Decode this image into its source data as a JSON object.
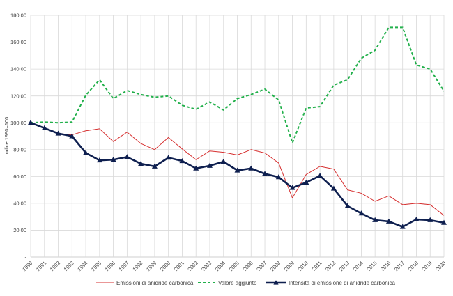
{
  "chart_data": {
    "type": "line",
    "title": "",
    "xlabel": "",
    "ylabel": "Indice 1990=100",
    "ylim": [
      0,
      180
    ],
    "y_ticks": [
      "-",
      "20,00",
      "40,00",
      "60,00",
      "80,00",
      "100,00",
      "120,00",
      "140,00",
      "160,00",
      "180,00"
    ],
    "grid": "vertical and horizontal",
    "legend_position": "bottom",
    "x": [
      "1990",
      "1991",
      "1992",
      "1993",
      "1994",
      "1995",
      "1996",
      "1997",
      "1998",
      "1999",
      "2000",
      "2001",
      "2002",
      "2003",
      "2004",
      "2005",
      "2006",
      "2007",
      "2008",
      "2009",
      "2010",
      "2011",
      "2012",
      "2013",
      "2014",
      "2015",
      "2016",
      "2017",
      "2018",
      "2019",
      "2020"
    ],
    "series": [
      {
        "name": "Emissioni di anidride carbonica",
        "color": "#d62f2f",
        "style": "solid-thin",
        "values": [
          100,
          96,
          92,
          91,
          94,
          95.5,
          86,
          93,
          84.5,
          80,
          89,
          80.5,
          72.5,
          79,
          78,
          76,
          80,
          77.5,
          70,
          44,
          61.5,
          67.5,
          65.5,
          50,
          47.5,
          41.5,
          45.5,
          39,
          40,
          39,
          31
        ]
      },
      {
        "name": "Valore aggiunto",
        "color": "#22b04b",
        "style": "dashed",
        "values": [
          100,
          100.5,
          100,
          100.5,
          120.5,
          132,
          118,
          124,
          121,
          119,
          120,
          113,
          110,
          115.5,
          109.5,
          118,
          121,
          125,
          117,
          85,
          111,
          112,
          128,
          132,
          148,
          154,
          171,
          171,
          143,
          140,
          123.5
        ]
      },
      {
        "name": "Intensità di emissione di anidride carbonica",
        "color": "#0e1f4f",
        "style": "solid-thick-triangle",
        "values": [
          100,
          96,
          92,
          90,
          77.5,
          72,
          72.5,
          74.5,
          69.5,
          67.5,
          74,
          71.5,
          66,
          68,
          71,
          64.5,
          66,
          62,
          59.5,
          51.5,
          55.5,
          60.5,
          51,
          38,
          32.5,
          27.5,
          26.5,
          22.5,
          28,
          27.5,
          25.5
        ]
      }
    ]
  }
}
